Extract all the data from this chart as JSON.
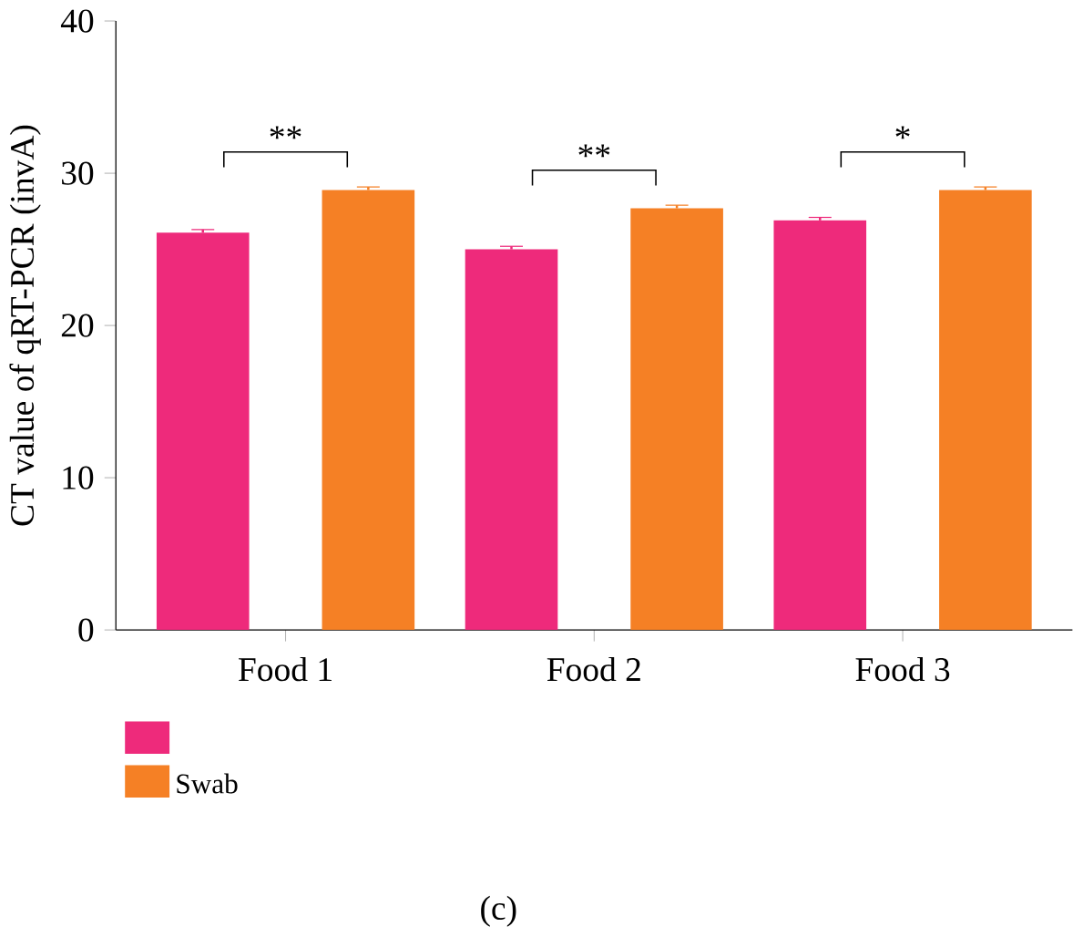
{
  "chart_data": {
    "type": "bar",
    "ylabel": "CT value of qRT-PCR (invA)",
    "categories": [
      "Food 1",
      "Food 2",
      "Food 3"
    ],
    "series": [
      {
        "color": "#ee2a7b",
        "values": [
          26.1,
          25.0,
          26.9
        ],
        "errors": [
          0.2,
          0.2,
          0.2
        ]
      },
      {
        "name": "Swab",
        "color": "#f58025",
        "values": [
          28.9,
          27.7,
          28.9
        ],
        "errors": [
          0.2,
          0.2,
          0.2
        ]
      }
    ],
    "ylim": [
      0,
      40
    ],
    "yticks": [
      0,
      10,
      20,
      30,
      40
    ],
    "legend": "bottom left",
    "annotations": [
      "**",
      "**",
      "*",
      "(c)"
    ]
  }
}
